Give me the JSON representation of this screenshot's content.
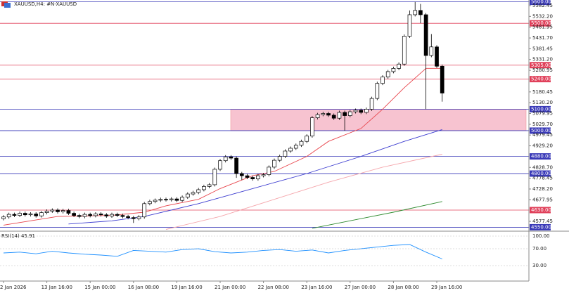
{
  "chart_data": {
    "type": "candlestick",
    "title": "XAUUSD,H4:  #N-XAUUSD",
    "categories": [
      "2 Jan 2026",
      null,
      null,
      null,
      null,
      null,
      null,
      null,
      "13 Jan 16:00",
      null,
      null,
      null,
      null,
      null,
      null,
      null,
      "15 Jan 00:00",
      null,
      null,
      null,
      null,
      null,
      null,
      null,
      "16 Jan 08:00",
      null,
      null,
      null,
      null,
      null,
      null,
      null,
      "19 Jan 16:00",
      null,
      null,
      null,
      null,
      null,
      null,
      null,
      "21 Jan 00:00",
      null,
      null,
      null,
      null,
      null,
      null,
      null,
      "22 Jan 08:00",
      null,
      null,
      null,
      null,
      null,
      null,
      null,
      "23 Jan 16:00",
      null,
      null,
      null,
      null,
      null,
      null,
      null,
      "27 Jan 00:00",
      null,
      null,
      null,
      null,
      null,
      null,
      null,
      "28 Jan 08:00",
      null,
      null,
      null,
      null,
      null,
      null,
      null,
      "29 Jan 16:00",
      null
    ],
    "open": [
      4590,
      4598,
      4610,
      4605,
      4615,
      4608,
      4612,
      4603,
      4618,
      4625,
      4630,
      4622,
      4628,
      4615,
      4605,
      4600,
      4610,
      4604,
      4612,
      4608,
      4602,
      4610,
      4605,
      4600,
      4595,
      4590,
      4598,
      4660,
      4670,
      4676,
      4680,
      4678,
      4682,
      4675,
      4690,
      4705,
      4712,
      4725,
      4740,
      4748,
      4820,
      4860,
      4878,
      4872,
      4800,
      4790,
      4782,
      4775,
      4790,
      4795,
      4830,
      4862,
      4880,
      4905,
      4918,
      4932,
      4950,
      4975,
      5060,
      5075,
      5080,
      5072,
      5058,
      5085,
      5070,
      5088,
      5095,
      5085,
      5100,
      5150,
      5220,
      5250,
      5275,
      5290,
      5310,
      5440,
      5540,
      5560,
      5540,
      5350,
      5390,
      5300
    ],
    "high": [
      4606,
      4618,
      4618,
      4623,
      4623,
      4620,
      4620,
      4626,
      4633,
      4638,
      4638,
      4636,
      4636,
      4623,
      4613,
      4618,
      4618,
      4620,
      4620,
      4616,
      4618,
      4618,
      4613,
      4608,
      4603,
      4606,
      4668,
      4678,
      4684,
      4688,
      4688,
      4690,
      4690,
      4698,
      4713,
      4720,
      4733,
      4748,
      4756,
      4828,
      4868,
      4886,
      4886,
      4880,
      4808,
      4798,
      4790,
      4798,
      4803,
      4838,
      4870,
      4888,
      4913,
      4926,
      4940,
      4958,
      4983,
      5068,
      5083,
      5088,
      5088,
      5080,
      5093,
      5093,
      5096,
      5103,
      5103,
      5108,
      5158,
      5228,
      5258,
      5283,
      5298,
      5318,
      5448,
      5560,
      5600,
      5590,
      5548,
      5450,
      5398,
      5308
    ],
    "low": [
      4582,
      4590,
      4597,
      4597,
      4600,
      4600,
      4595,
      4595,
      4610,
      4617,
      4614,
      4614,
      4607,
      4597,
      4592,
      4592,
      4596,
      4596,
      4600,
      4594,
      4594,
      4597,
      4592,
      4587,
      4570,
      4582,
      4590,
      4652,
      4662,
      4668,
      4670,
      4670,
      4667,
      4667,
      4682,
      4697,
      4704,
      4717,
      4732,
      4740,
      4812,
      4852,
      4864,
      4780,
      4770,
      4774,
      4767,
      4767,
      4782,
      4787,
      4822,
      4854,
      4872,
      4897,
      4910,
      4924,
      4942,
      4967,
      5052,
      5067,
      5064,
      5050,
      5050,
      5000,
      5062,
      5080,
      5077,
      5077,
      5092,
      5142,
      5212,
      5242,
      5267,
      5282,
      5302,
      5432,
      5532,
      5500,
      5100,
      5342,
      5292,
      5135
    ],
    "close": [
      4598,
      4610,
      4605,
      4615,
      4608,
      4612,
      4603,
      4618,
      4625,
      4630,
      4622,
      4628,
      4615,
      4605,
      4600,
      4610,
      4604,
      4612,
      4608,
      4602,
      4610,
      4605,
      4600,
      4595,
      4590,
      4598,
      4660,
      4670,
      4676,
      4680,
      4678,
      4682,
      4675,
      4690,
      4705,
      4712,
      4725,
      4740,
      4748,
      4820,
      4860,
      4878,
      4872,
      4800,
      4790,
      4782,
      4775,
      4790,
      4795,
      4830,
      4862,
      4880,
      4905,
      4918,
      4932,
      4950,
      4975,
      5060,
      5075,
      5080,
      5072,
      5058,
      5085,
      5070,
      5088,
      5095,
      5085,
      5100,
      5150,
      5220,
      5250,
      5275,
      5290,
      5310,
      5440,
      5540,
      5560,
      5540,
      5350,
      5390,
      5300,
      5175
    ],
    "up_color": "#ffffff",
    "down_color": "#000000",
    "ylim": [
      4535,
      5608.6
    ],
    "yticks": [
      5582.45,
      {
        "value": 5532.2,
        "label": "5532.20"
      },
      5481.95,
      {
        "value": 5431.7,
        "label": "5431.70"
      },
      5381.45,
      {
        "value": 5331.2,
        "label": "5331.20"
      },
      5280.95,
      5180.45,
      {
        "value": 5130.2,
        "label": "5130.20"
      },
      5079.95,
      {
        "value": 5029.7,
        "label": "5029.70"
      },
      4979.45,
      {
        "value": 4929.2,
        "label": "4929.20"
      },
      {
        "value": 4828.7,
        "label": "4828.70"
      },
      4778.45,
      {
        "value": 4728.2,
        "label": "4728.20"
      },
      4677.95,
      4577.45
    ],
    "levels": [
      {
        "value": 5600,
        "label": "5600.00",
        "color": "#3a3ab8"
      },
      {
        "value": 5500,
        "label": "5500.00",
        "color": "#e0405a"
      },
      {
        "value": 5305,
        "label": "5305.00",
        "color": "#e0405a"
      },
      {
        "value": 5240,
        "label": "5240.00",
        "color": "#e0405a"
      },
      {
        "value": 5100,
        "label": "5100.00",
        "color": "#3a3ab8"
      },
      {
        "value": 5000,
        "label": "5000.00",
        "color": "#3a3ab8"
      },
      {
        "value": 4880,
        "label": "4880.00",
        "color": "#3a3ab8"
      },
      {
        "value": 4800,
        "label": "4800.00",
        "color": "#3a3ab8"
      },
      {
        "value": 4630,
        "label": "4630.00",
        "color": "#e0405a"
      },
      {
        "value": 4550,
        "label": "4550.00",
        "color": "#3a3ab8"
      }
    ],
    "zone": {
      "from": 5000,
      "to": 5100,
      "color": "#f7c3d0"
    },
    "ma": [
      {
        "color": "#e8434a",
        "x": [
          0,
          10,
          20,
          26,
          30,
          36,
          40,
          46,
          50,
          56,
          60,
          66,
          70,
          74,
          78,
          81
        ],
        "values": [
          4560,
          4600,
          4605,
          4620,
          4650,
          4680,
          4730,
          4790,
          4810,
          4880,
          4950,
          5010,
          5100,
          5200,
          5290,
          5290
        ]
      },
      {
        "color": "#3d3dd0",
        "x": [
          12,
          20,
          26,
          36,
          46,
          56,
          66,
          74,
          81
        ],
        "values": [
          4565,
          4580,
          4600,
          4660,
          4730,
          4800,
          4880,
          4950,
          5005
        ]
      },
      {
        "color": "#f5a6ac",
        "x": [
          30,
          40,
          50,
          60,
          70,
          81
        ],
        "values": [
          4540,
          4600,
          4680,
          4760,
          4830,
          4890
        ]
      },
      {
        "color": "#2e8a2e",
        "x": [
          57,
          65,
          72,
          81
        ],
        "values": [
          4545,
          4585,
          4620,
          4670
        ]
      }
    ],
    "rsi": {
      "label": "RSI(14) 45.91",
      "color": "#1e90ff",
      "x": [
        0,
        3,
        6,
        9,
        12,
        15,
        18,
        21,
        24,
        27,
        30,
        33,
        36,
        39,
        42,
        45,
        48,
        51,
        54,
        57,
        60,
        63,
        66,
        69,
        72,
        75,
        78,
        81
      ],
      "values": [
        60,
        62,
        58,
        64,
        60,
        57,
        55,
        52,
        66,
        64,
        62,
        68,
        70,
        63,
        60,
        62,
        66,
        68,
        64,
        67,
        60,
        66,
        70,
        74,
        78,
        80,
        62,
        45.91
      ],
      "ylim": [
        0,
        100
      ],
      "yticks": [
        {
          "value": 100,
          "label": "100.00"
        },
        {
          "value": 70,
          "label": "70.00"
        },
        {
          "value": 30,
          "label": "30.00"
        }
      ]
    }
  }
}
